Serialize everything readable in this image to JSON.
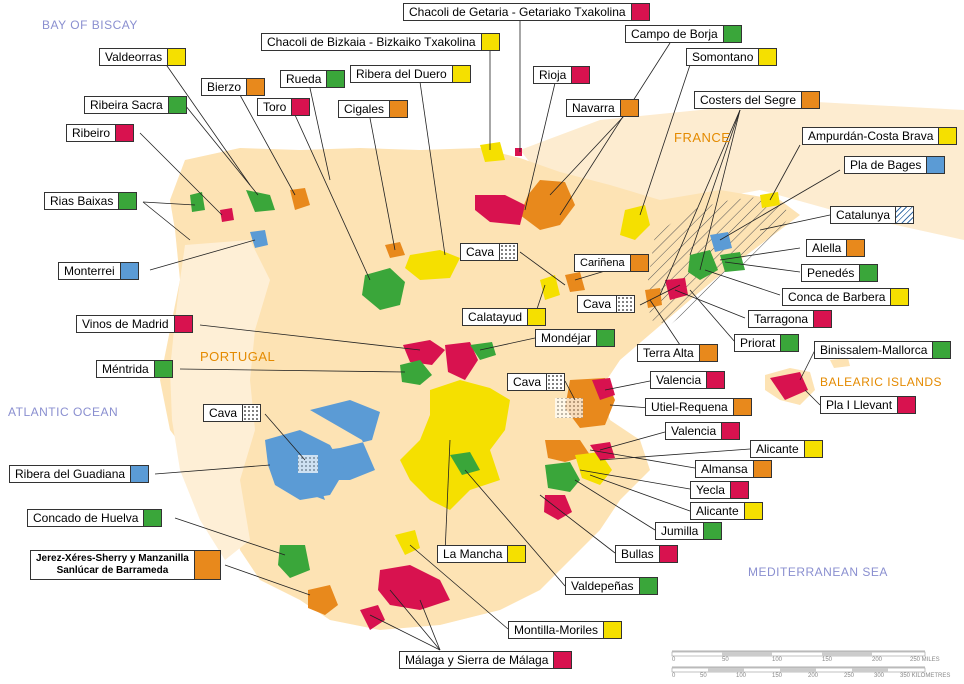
{
  "colors": {
    "red": "#d8124f",
    "orange": "#e8891c",
    "yellow": "#f5e000",
    "green": "#3aa63a",
    "blue": "#5b9bd5",
    "land": "#fde3b4",
    "sea_text": "#8a8fd0",
    "country_text": "#e48a00"
  },
  "seas": {
    "bay_of_biscay": "BAY OF BISCAY",
    "atlantic": "ATLANTIC OCEAN",
    "mediterranean": "MEDITERRANEAN SEA"
  },
  "countries": {
    "france": "FRANCE",
    "portugal": "PORTUGAL",
    "balearic": "BALEARIC ISLANDS"
  },
  "labels": {
    "chacoli_getaria": {
      "text": "Chacoli de Getaria - Getariako Txakolina",
      "color": "red"
    },
    "chacoli_bizkaia": {
      "text": "Chacoli de Bizkaia - Bizkaiko Txakolina",
      "color": "yellow"
    },
    "campo_borja": {
      "text": "Campo de Borja",
      "color": "green"
    },
    "valdeorras": {
      "text": "Valdeorras",
      "color": "yellow"
    },
    "somontano": {
      "text": "Somontano",
      "color": "yellow"
    },
    "rueda": {
      "text": "Rueda",
      "color": "green"
    },
    "ribera_duero": {
      "text": "Ribera del Duero",
      "color": "yellow"
    },
    "rioja": {
      "text": "Rioja",
      "color": "red"
    },
    "bierzo": {
      "text": "Bierzo",
      "color": "orange"
    },
    "ribeira_sacra": {
      "text": "Ribeira Sacra",
      "color": "green"
    },
    "toro": {
      "text": "Toro",
      "color": "red"
    },
    "cigales": {
      "text": "Cigales",
      "color": "orange"
    },
    "navarra": {
      "text": "Navarra",
      "color": "orange"
    },
    "costers_segre": {
      "text": "Costers del Segre",
      "color": "orange"
    },
    "ribeiro": {
      "text": "Ribeiro",
      "color": "red"
    },
    "ampurdan": {
      "text": "Ampurdán-Costa Brava",
      "color": "yellow"
    },
    "pla_bages": {
      "text": "Pla de Bages",
      "color": "blue"
    },
    "rias_baixas": {
      "text": "Rias Baixas",
      "color": "green"
    },
    "catalunya": {
      "text": "Catalunya",
      "color": "hatch"
    },
    "alella": {
      "text": "Alella",
      "color": "orange"
    },
    "cava1": {
      "text": "Cava",
      "color": "grid"
    },
    "carinena": {
      "text": "Cariñena",
      "color": "orange"
    },
    "monterrei": {
      "text": "Monterrei",
      "color": "blue"
    },
    "penedes": {
      "text": "Penedés",
      "color": "green"
    },
    "conca_barbera": {
      "text": "Conca de Barbera",
      "color": "yellow"
    },
    "cava2": {
      "text": "Cava",
      "color": "grid"
    },
    "calatayud": {
      "text": "Calatayud",
      "color": "yellow"
    },
    "tarragona": {
      "text": "Tarragona",
      "color": "red"
    },
    "vinos_madrid": {
      "text": "Vinos de Madrid",
      "color": "red"
    },
    "mondejar": {
      "text": "Mondéjar",
      "color": "green"
    },
    "priorat": {
      "text": "Priorat",
      "color": "green"
    },
    "terra_alta": {
      "text": "Terra Alta",
      "color": "orange"
    },
    "binissalem": {
      "text": "Binissalem-Mallorca",
      "color": "green"
    },
    "mentrida": {
      "text": "Méntrida",
      "color": "green"
    },
    "cava3": {
      "text": "Cava",
      "color": "grid"
    },
    "valencia1": {
      "text": "Valencia",
      "color": "red"
    },
    "pla_llevant": {
      "text": "Pla I Llevant",
      "color": "red"
    },
    "cava4": {
      "text": "Cava",
      "color": "grid"
    },
    "utiel": {
      "text": "Utiel-Requena",
      "color": "orange"
    },
    "valencia2": {
      "text": "Valencia",
      "color": "red"
    },
    "alicante1": {
      "text": "Alicante",
      "color": "yellow"
    },
    "ribera_guadiana": {
      "text": "Ribera del Guadiana",
      "color": "blue"
    },
    "almansa": {
      "text": "Almansa",
      "color": "orange"
    },
    "yecla": {
      "text": "Yecla",
      "color": "red"
    },
    "alicante2": {
      "text": "Alicante",
      "color": "yellow"
    },
    "concado_huelva": {
      "text": "Concado de Huelva",
      "color": "green"
    },
    "jumilla": {
      "text": "Jumilla",
      "color": "green"
    },
    "jerez": {
      "text": "Jerez-Xéres-Sherry y Manzanilla",
      "text2": "Sanlúcar de Barrameda",
      "color": "orange"
    },
    "bullas": {
      "text": "Bullas",
      "color": "red"
    },
    "la_mancha": {
      "text": "La Mancha",
      "color": "yellow"
    },
    "valdepenas": {
      "text": "Valdepeñas",
      "color": "green"
    },
    "montilla": {
      "text": "Montilla-Moriles",
      "color": "yellow"
    },
    "malaga": {
      "text": "Málaga y Sierra de Málaga",
      "color": "red"
    }
  },
  "scale": {
    "miles_ticks": [
      "0",
      "50",
      "100",
      "150",
      "200",
      "250 MILES"
    ],
    "km_ticks": [
      "0",
      "50",
      "100",
      "150",
      "200",
      "250",
      "300",
      "350 KILOMETRES"
    ]
  }
}
